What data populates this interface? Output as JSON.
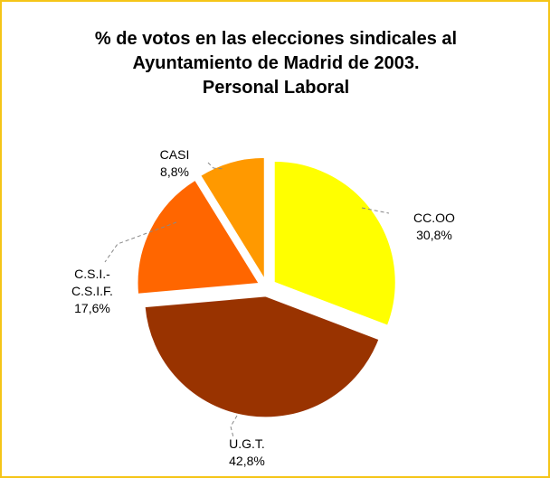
{
  "chart_data": {
    "type": "pie",
    "title_lines": [
      "% de votos en las elecciones sindicales al",
      "Ayuntamiento de Madrid de 2003.",
      "Personal Laboral"
    ],
    "slices": [
      {
        "label_lines": [
          "CC.OO"
        ],
        "value_label": "30,8%",
        "value": 30.8,
        "color": "#ffff00"
      },
      {
        "label_lines": [
          "U.G.T."
        ],
        "value_label": "42,8%",
        "value": 42.8,
        "color": "#993300"
      },
      {
        "label_lines": [
          "C.S.I.-",
          "C.S.I.F."
        ],
        "value_label": "17,6%",
        "value": 17.6,
        "color": "#ff6600"
      },
      {
        "label_lines": [
          "CASI"
        ],
        "value_label": "8,8%",
        "value": 8.8,
        "color": "#ff9900"
      }
    ],
    "legend": "none",
    "exploded": true
  },
  "frame": {
    "border_color": "#f5c518"
  }
}
